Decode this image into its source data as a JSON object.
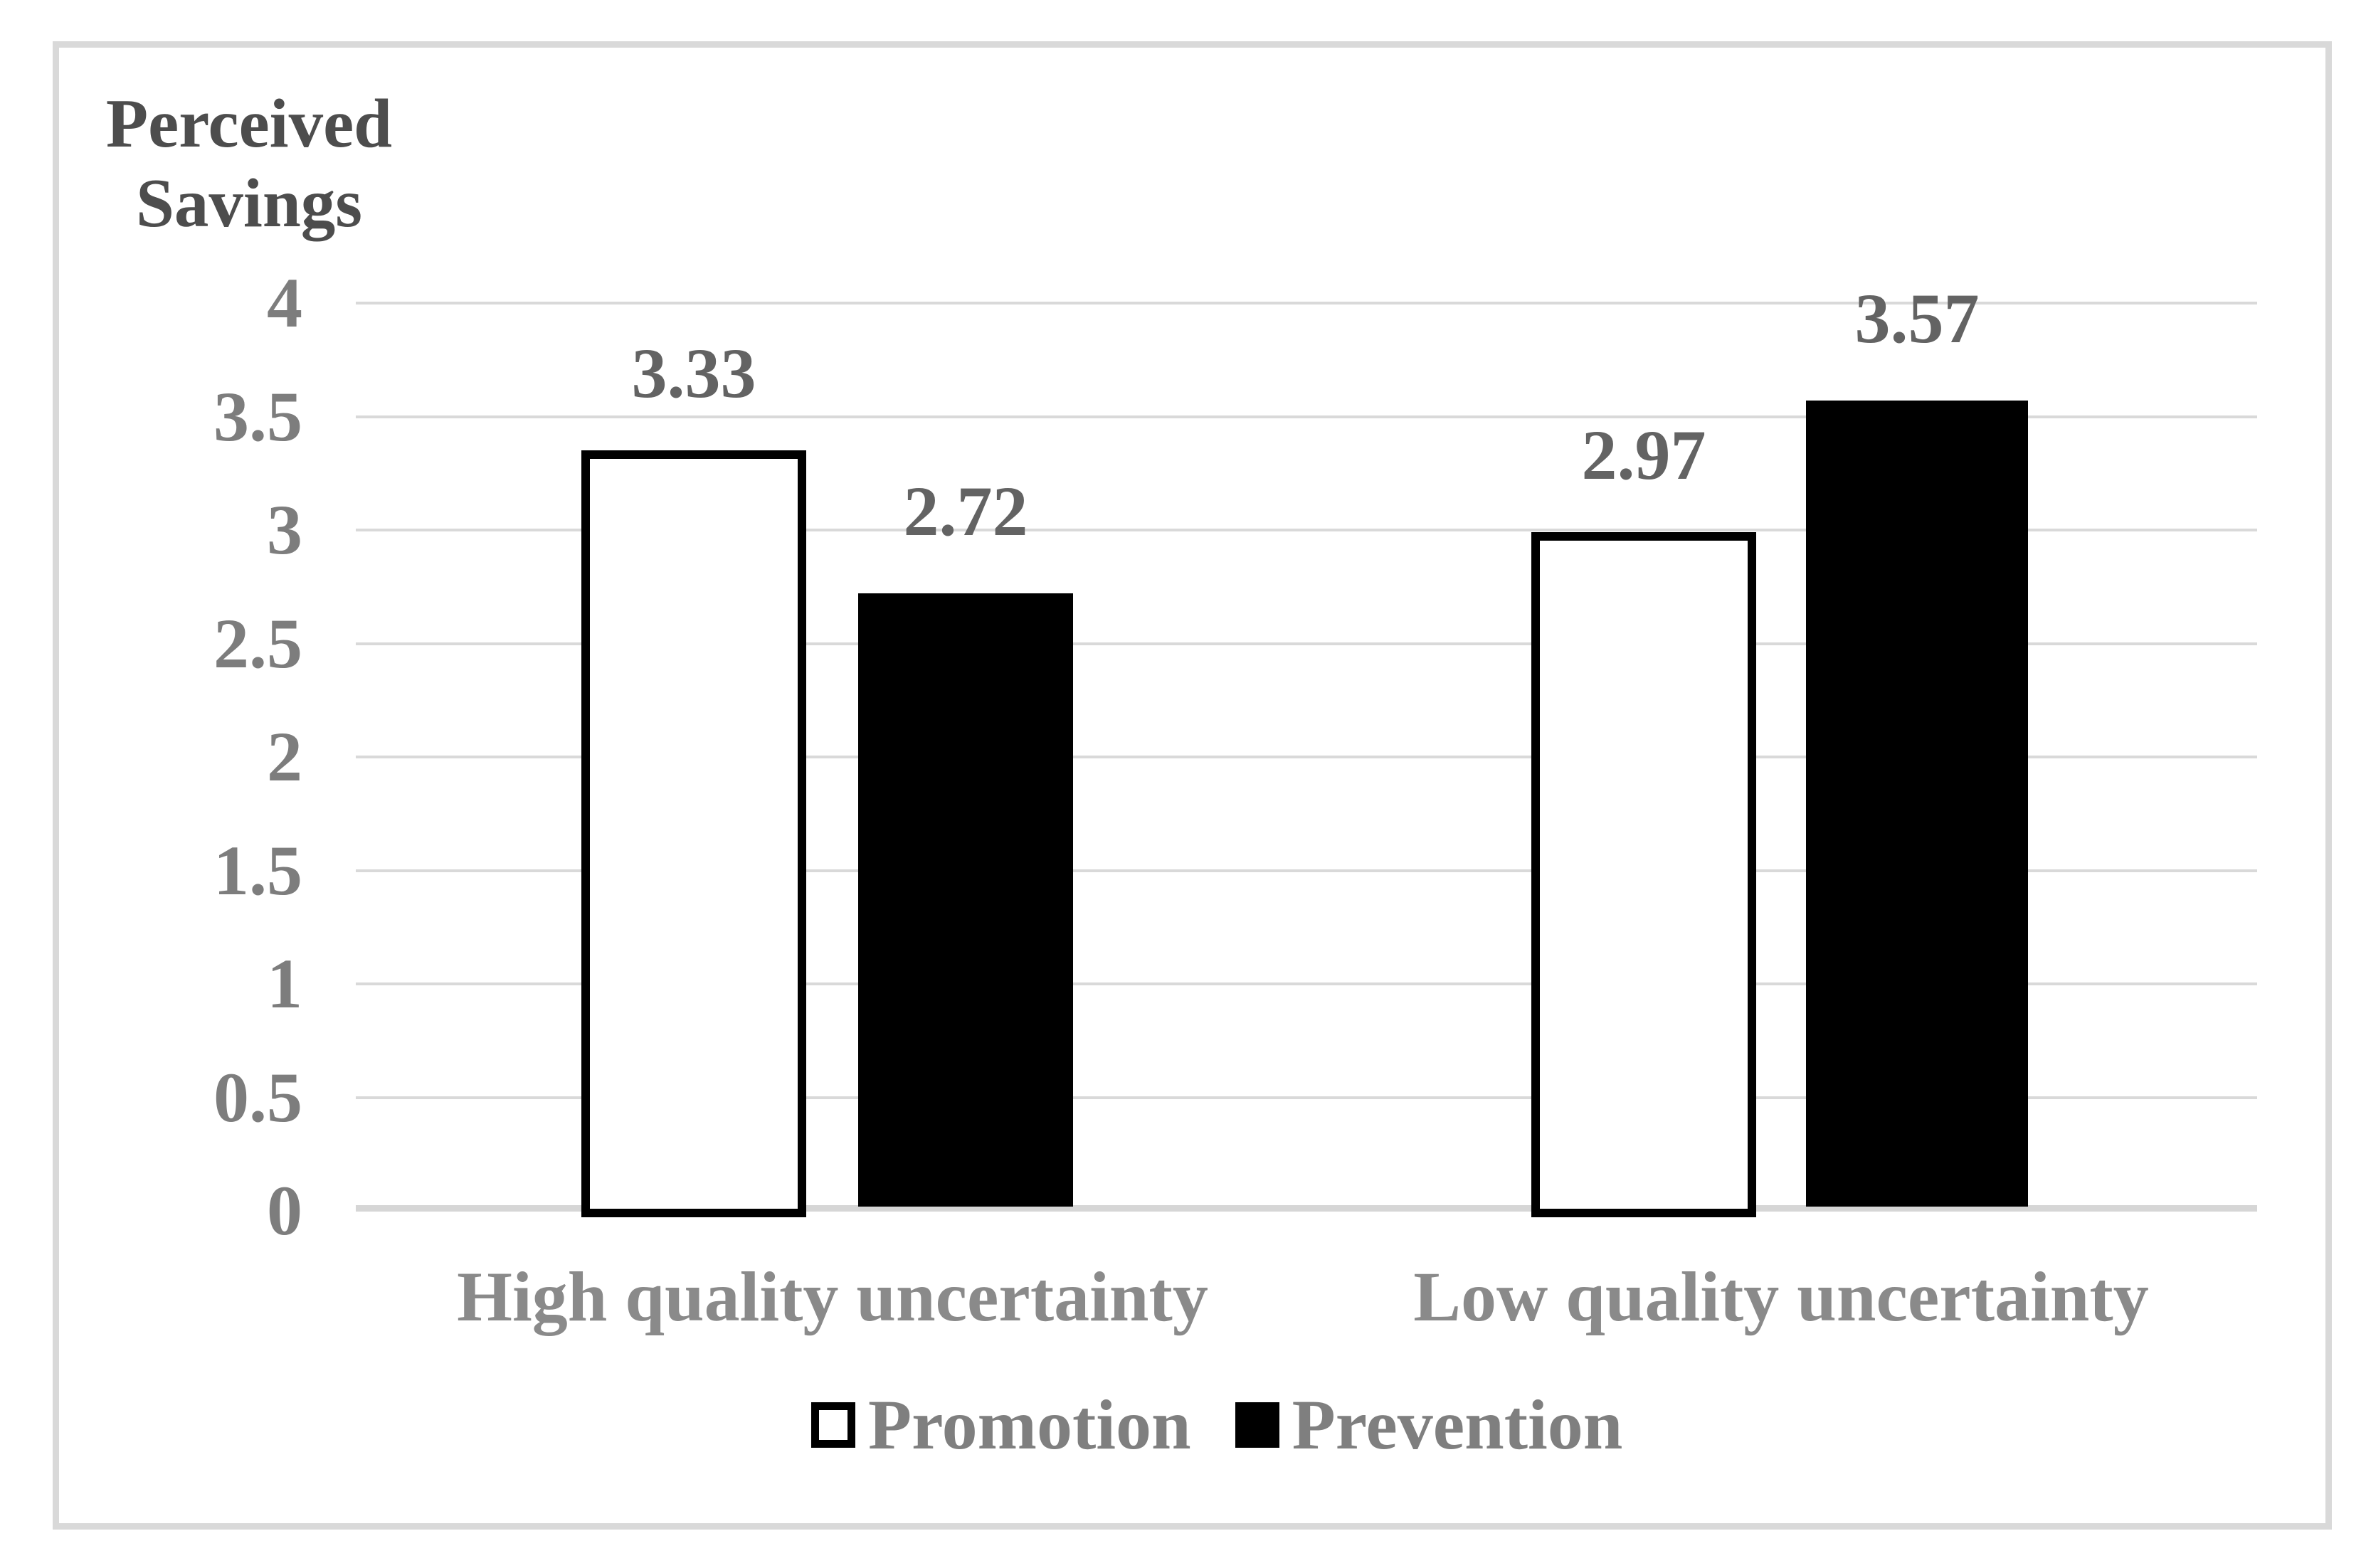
{
  "chart_data": {
    "type": "bar",
    "title": "Perceived Savings",
    "ylabel": "Perceived Savings",
    "ylabel_lines": [
      "Perceived",
      "Savings"
    ],
    "xlabel": "",
    "categories": [
      "High quality uncertainty",
      "Low quality uncertainty"
    ],
    "series": [
      {
        "name": "Promotion",
        "fill": "#ffffff",
        "border": "#000000",
        "values": [
          3.33,
          2.97
        ],
        "value_labels": [
          "3.33",
          "2.97"
        ]
      },
      {
        "name": "Prevention",
        "fill": "#000000",
        "border": "#000000",
        "values": [
          2.72,
          3.57
        ],
        "value_labels": [
          "2.72",
          "3.57"
        ]
      }
    ],
    "ylim": [
      0,
      4
    ],
    "ytick_step": 0.5,
    "ytick_labels": [
      "4",
      "3.5",
      "3",
      "2.5",
      "2",
      "1.5",
      "1",
      "0.5",
      "0"
    ],
    "grid": true,
    "legend_position": "bottom",
    "colors": {
      "ylabel_text": "#4d4d4d",
      "tick_text": "#7d7d7d",
      "value_label_text": "#636363",
      "category_text": "#8a8a8a",
      "legend_text": "#7f7f7f",
      "gridline": "#d9d9d9",
      "axis_line": "#d6d6d6",
      "frame_border": "#d9d9d9",
      "background": "#ffffff"
    }
  }
}
